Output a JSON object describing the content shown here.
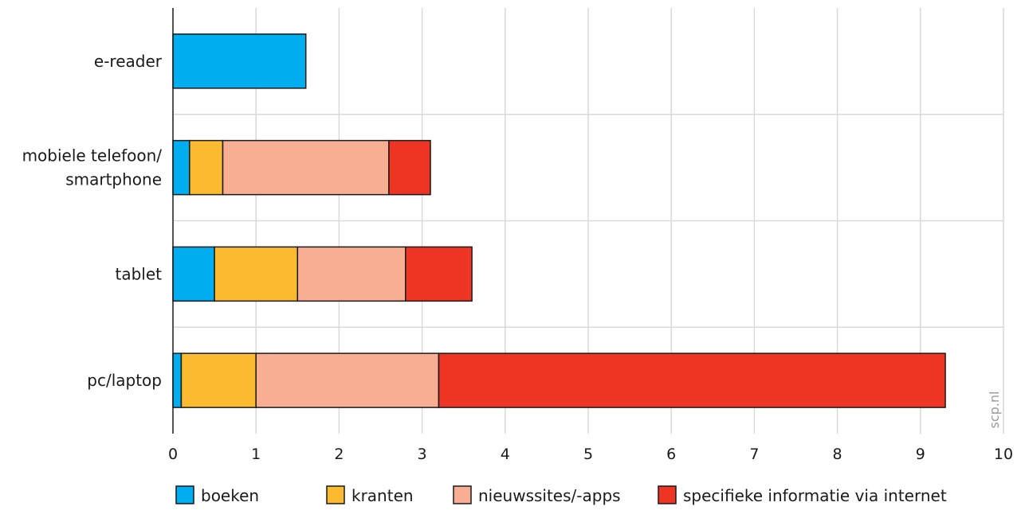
{
  "chart_data": {
    "type": "bar",
    "orientation": "horizontal",
    "stacked": true,
    "categories": [
      "e-reader",
      "mobiele telefoon/\nsmartphone",
      "tablet",
      "pc/laptop"
    ],
    "series": [
      {
        "name": "boeken",
        "values": [
          1.6,
          0.2,
          0.5,
          0.1
        ],
        "color": "#00aeef"
      },
      {
        "name": "kranten",
        "values": [
          0,
          0.4,
          1.0,
          0.9
        ],
        "color": "#fbba2f"
      },
      {
        "name": "nieuwssites/-apps",
        "values": [
          0,
          2.0,
          1.3,
          2.2
        ],
        "color": "#f8ae93"
      },
      {
        "name": "specifieke informatie via internet",
        "values": [
          0,
          0.5,
          0.8,
          6.1
        ],
        "color": "#ee3524"
      }
    ],
    "x_ticks": [
      "0",
      "1",
      "2",
      "3",
      "4",
      "5",
      "6",
      "7",
      "8",
      "9",
      "10"
    ],
    "xlim": [
      0,
      10
    ],
    "grid": true,
    "legend_position": "bottom",
    "title": "",
    "xlabel": "",
    "ylabel": "",
    "watermark": "scp.nl"
  }
}
